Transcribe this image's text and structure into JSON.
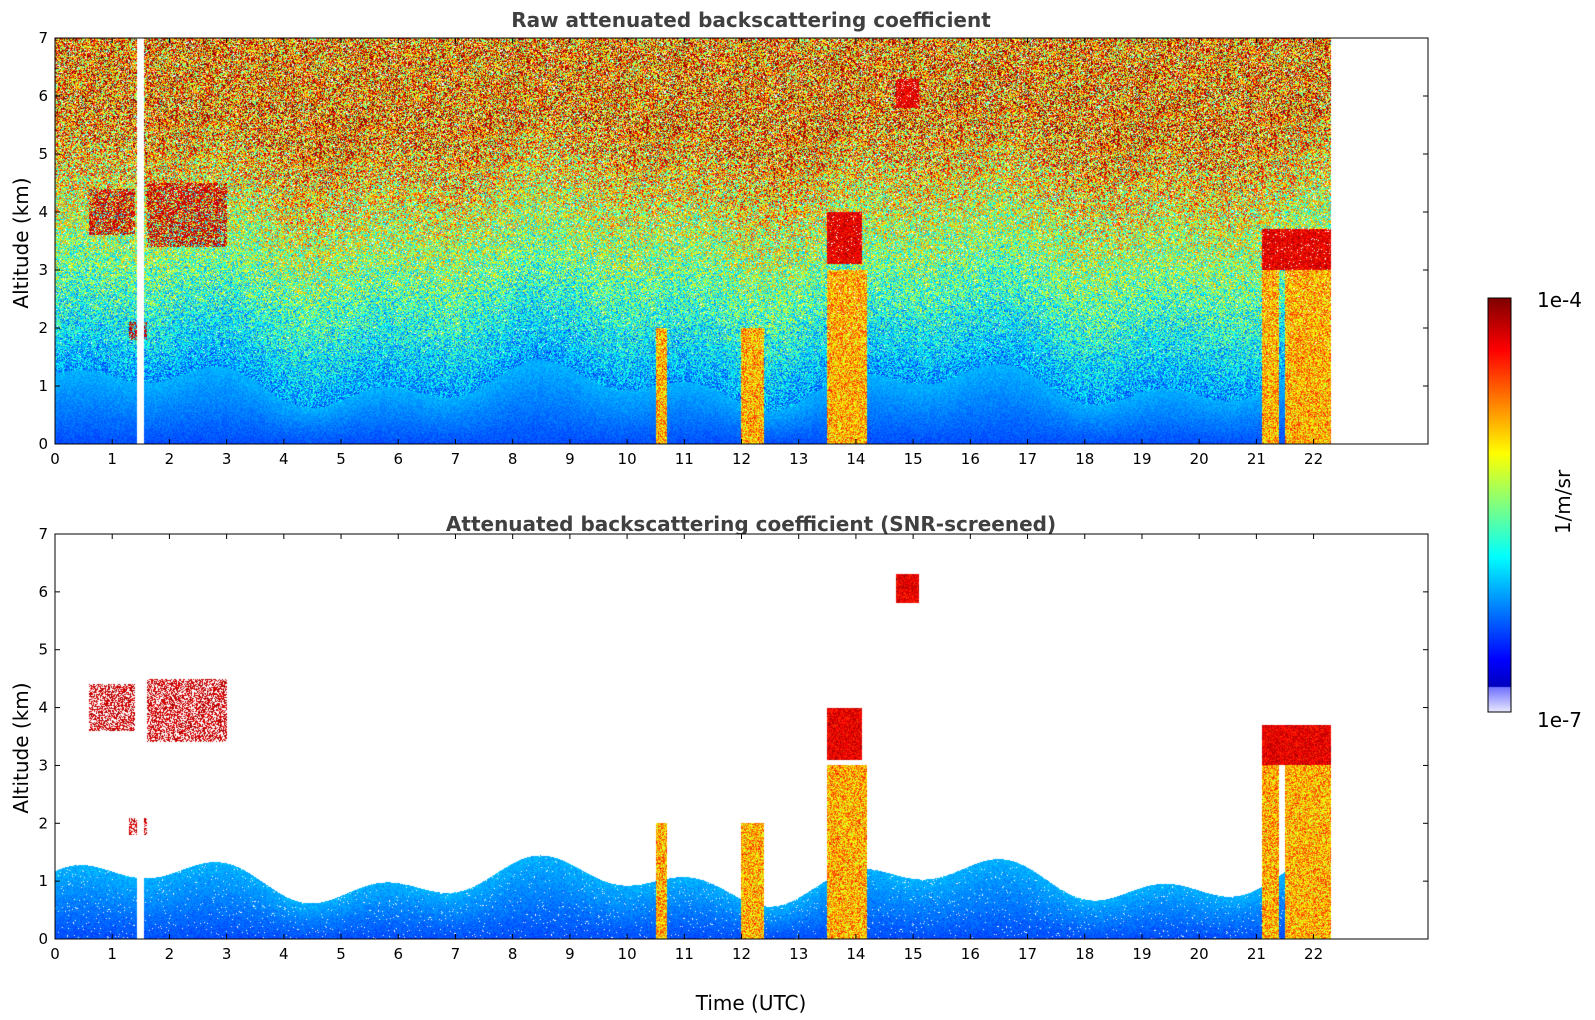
{
  "chart_data": [
    {
      "type": "heatmap",
      "title": "Raw attenuated backscattering coefficient",
      "xlabel": "",
      "ylabel": "Altitude (km)",
      "xlim": [
        0,
        24
      ],
      "ylim": [
        0,
        7
      ],
      "xticks": [
        "0",
        "1",
        "2",
        "3",
        "4",
        "5",
        "6",
        "7",
        "8",
        "9",
        "10",
        "11",
        "12",
        "13",
        "14",
        "15",
        "16",
        "17",
        "18",
        "19",
        "20",
        "21",
        "22"
      ],
      "yticks": [
        "0",
        "1",
        "2",
        "3",
        "4",
        "5",
        "6",
        "7"
      ],
      "data_end_time": 22.3,
      "screened": false,
      "features": {
        "boundary_layer_top_km": 1.0,
        "gaps": [
          {
            "x": 1.5,
            "width": 0.12
          }
        ],
        "aerosol_layers": [
          {
            "x0": 0.6,
            "x1": 1.4,
            "y0": 3.6,
            "y1": 4.4
          },
          {
            "x0": 1.6,
            "x1": 3.0,
            "y0": 3.4,
            "y1": 4.5
          },
          {
            "x0": 1.3,
            "x1": 1.6,
            "y0": 1.8,
            "y1": 2.1
          }
        ],
        "clouds": [
          {
            "x0": 13.5,
            "x1": 14.1,
            "y0": 3.1,
            "y1": 4.0
          },
          {
            "x0": 14.7,
            "x1": 15.1,
            "y0": 5.8,
            "y1": 6.3
          },
          {
            "x0": 21.1,
            "x1": 22.3,
            "y0": 3.0,
            "y1": 3.7
          }
        ],
        "precipitation_columns": [
          {
            "x0": 10.5,
            "x1": 10.7
          },
          {
            "x0": 12.0,
            "x1": 12.4
          },
          {
            "x0": 13.5,
            "x1": 14.2
          },
          {
            "x0": 21.1,
            "x1": 21.4
          },
          {
            "x0": 21.5,
            "x1": 22.3
          }
        ]
      }
    },
    {
      "type": "heatmap",
      "title": "Attenuated backscattering coefficient (SNR-screened)",
      "xlabel": "Time (UTC)",
      "ylabel": "Altitude (km)",
      "xlim": [
        0,
        24
      ],
      "ylim": [
        0,
        7
      ],
      "xticks": [
        "0",
        "1",
        "2",
        "3",
        "4",
        "5",
        "6",
        "7",
        "8",
        "9",
        "10",
        "11",
        "12",
        "13",
        "14",
        "15",
        "16",
        "17",
        "18",
        "19",
        "20",
        "21",
        "22"
      ],
      "yticks": [
        "0",
        "1",
        "2",
        "3",
        "4",
        "5",
        "6",
        "7"
      ],
      "data_end_time": 22.3,
      "screened": true
    }
  ],
  "colorbar": {
    "label": "1/m/sr",
    "max_label": "1e-4",
    "min_label": "1e-7",
    "scale": "log",
    "range": [
      1e-07,
      0.0001
    ],
    "colormap": "jet"
  }
}
